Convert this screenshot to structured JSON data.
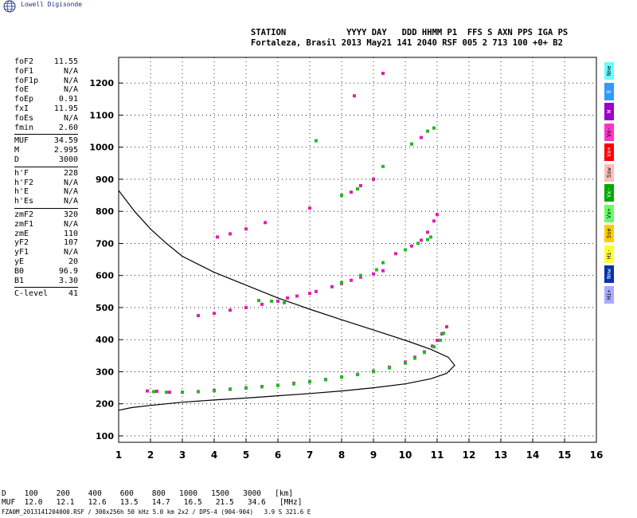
{
  "brand": {
    "name": "Lowell Digisonde",
    "logo_icon": "globe-icon"
  },
  "header": {
    "line1": "STATION            YYYY DAY   DDD HHMM P1  FFS S AXN PPS IGA PS",
    "line2": "Fortaleza, Brasil 2013 May21 141 2040 RSF 005 2 713 100 +0+ B2"
  },
  "params": [
    {
      "k": "foF2",
      "v": "11.55"
    },
    {
      "k": "foF1",
      "v": "N/A"
    },
    {
      "k": "foF1p",
      "v": "N/A"
    },
    {
      "k": "foE",
      "v": "N/A"
    },
    {
      "k": "foEp",
      "v": "0.91"
    },
    {
      "k": "fxI",
      "v": "11.95"
    },
    {
      "k": "foEs",
      "v": "N/A"
    },
    {
      "k": "fmin",
      "v": "2.60"
    },
    {
      "sep": true
    },
    {
      "k": "MUF",
      "v": "34.59"
    },
    {
      "k": "M",
      "v": "2.995"
    },
    {
      "k": "D",
      "v": "3000"
    },
    {
      "sep": true
    },
    {
      "k": "h'F",
      "v": "228"
    },
    {
      "k": "h'F2",
      "v": "N/A"
    },
    {
      "k": "h'E",
      "v": "N/A"
    },
    {
      "k": "h'Es",
      "v": "N/A"
    },
    {
      "sep": true
    },
    {
      "k": "zmF2",
      "v": "320"
    },
    {
      "k": "zmF1",
      "v": "N/A"
    },
    {
      "k": "zmE",
      "v": "110"
    },
    {
      "k": "yF2",
      "v": "107"
    },
    {
      "k": "yF1",
      "v": "N/A"
    },
    {
      "k": "yE",
      "v": "20"
    },
    {
      "k": "B0",
      "v": "96.9"
    },
    {
      "k": "B1",
      "v": "3.30"
    },
    {
      "sep": true
    },
    {
      "k": "C-level",
      "v": "41"
    }
  ],
  "legend": [
    {
      "label": "Nne",
      "color": "#66ffff"
    },
    {
      "label": "E",
      "color": "#3399ff"
    },
    {
      "label": "W",
      "color": "#9900cc"
    },
    {
      "label": "Vo-",
      "color": "#ff33cc"
    },
    {
      "label": "Vo+",
      "color": "#ff0000"
    },
    {
      "label": "Ssw",
      "color": "#ffbbbb"
    },
    {
      "label": "Vx-",
      "color": "#00aa00"
    },
    {
      "label": "Vx+",
      "color": "#66ff66"
    },
    {
      "label": "Sse",
      "color": "#ffcc00"
    },
    {
      "label": "Hi-",
      "color": "#ffff33"
    },
    {
      "label": "Nnw",
      "color": "#0033aa"
    },
    {
      "label": "Hi+",
      "color": "#aaaaff"
    }
  ],
  "footer": {
    "d_row": "D    100    200    400    600    800   1000   1500   3000   [km]",
    "muf_row": "MUF  12.0   12.1   12.6   13.5   14.7   16.5   21.5   34.6   [MHz]",
    "file_line": "FZA0M_2013141204000.RSF / 300x256h 50 kHz 5.0 km 2x2 / DPS-4 (904-904)   3.9 S 321.6 E"
  },
  "chart_data": {
    "type": "scatter",
    "title": "",
    "xlabel": "",
    "ylabel": "",
    "xlim": [
      1,
      16
    ],
    "ylim": [
      80,
      1280
    ],
    "xticks": [
      1,
      2,
      3,
      4,
      5,
      6,
      7,
      8,
      9,
      10,
      11,
      12,
      13,
      14,
      15,
      16
    ],
    "yticks": [
      100,
      200,
      300,
      400,
      500,
      600,
      700,
      800,
      900,
      1000,
      1100,
      1200
    ],
    "grid": true,
    "colors": {
      "o_trace": "#e020b0",
      "x_trace": "#22bb22",
      "profile": "#000000"
    },
    "profile": {
      "x": [
        1.0,
        1.4,
        2.0,
        3.0,
        4.0,
        5.0,
        6.0,
        7.0,
        8.0,
        9.0,
        10.0,
        10.8,
        11.3,
        11.55,
        11.35,
        10.8,
        10.0,
        9.0,
        8.0,
        7.0,
        6.0,
        5.0,
        4.0,
        3.0,
        2.5,
        2.0,
        1.5,
        1.0
      ],
      "y": [
        180,
        188,
        195,
        205,
        212,
        218,
        225,
        232,
        240,
        250,
        262,
        278,
        295,
        320,
        345,
        370,
        398,
        430,
        462,
        495,
        530,
        570,
        610,
        660,
        700,
        745,
        800,
        865
      ]
    },
    "series": [
      {
        "name": "Vo-",
        "x": [
          1.9,
          2.2,
          2.6,
          3.0,
          3.5,
          4.0,
          4.5,
          5.0,
          5.5,
          6.0,
          6.5,
          7.0,
          7.5,
          8.0,
          8.5,
          9.0,
          9.5,
          10.0,
          10.3,
          10.6,
          10.85,
          11.0,
          11.15,
          11.3
        ],
        "y": [
          240,
          239,
          236,
          236,
          238,
          242,
          246,
          250,
          254,
          258,
          264,
          270,
          276,
          284,
          292,
          302,
          314,
          330,
          345,
          362,
          380,
          398,
          418,
          440
        ]
      },
      {
        "name": "Vx+",
        "x": [
          2.1,
          2.5,
          3.0,
          3.5,
          4.0,
          4.5,
          5.0,
          5.5,
          6.0,
          6.5,
          7.0,
          7.5,
          8.0,
          8.5,
          9.0,
          9.5,
          10.0,
          10.3,
          10.6,
          10.9,
          11.1,
          11.2
        ],
        "y": [
          238,
          236,
          236,
          238,
          241,
          245,
          249,
          253,
          257,
          262,
          268,
          275,
          283,
          291,
          300,
          312,
          327,
          342,
          360,
          378,
          398,
          420
        ]
      },
      {
        "name": "Vo-",
        "x": [
          3.5,
          4.0,
          4.5,
          5.0,
          5.5,
          6.0,
          6.3,
          6.6,
          7.0,
          7.2,
          7.7,
          8.0,
          8.3,
          8.6,
          9.0,
          9.3,
          9.7,
          10.0,
          10.2,
          10.5,
          10.7,
          10.9,
          11.0,
          4.1,
          4.5,
          5.0,
          5.6,
          7.0,
          8.3,
          8.6,
          9.0,
          10.2,
          10.5,
          10.7,
          8.4,
          9.3
        ],
        "y": [
          475,
          482,
          492,
          500,
          510,
          520,
          530,
          536,
          544,
          550,
          565,
          575,
          585,
          595,
          605,
          615,
          668,
          680,
          692,
          710,
          735,
          770,
          790,
          720,
          730,
          745,
          765,
          810,
          860,
          880,
          900,
          1010,
          1030,
          1050,
          1160,
          1230
        ]
      },
      {
        "name": "Vx+",
        "x": [
          5.4,
          5.8,
          6.2,
          8.0,
          8.6,
          9.1,
          9.3,
          10.0,
          10.4,
          10.7,
          10.8,
          7.2,
          8.0,
          8.5,
          9.3,
          10.2,
          10.7,
          10.9
        ],
        "y": [
          522,
          520,
          515,
          578,
          600,
          618,
          640,
          680,
          700,
          712,
          720,
          1020,
          850,
          870,
          940,
          1010,
          1050,
          1060
        ]
      }
    ]
  }
}
